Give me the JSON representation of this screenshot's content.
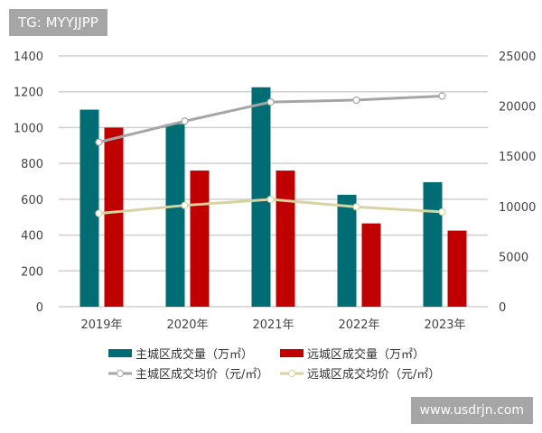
{
  "overlay": {
    "top_left": "TG: MYYJJPP",
    "bottom_right": "www.usdrjn.com"
  },
  "chart_data": {
    "type": "bar",
    "categories": [
      "2019年",
      "2020年",
      "2021年",
      "2022年",
      "2023年"
    ],
    "left_axis": {
      "ylim": [
        0,
        1400
      ],
      "ticks": [
        0,
        200,
        400,
        600,
        800,
        1000,
        1200,
        1400
      ]
    },
    "right_axis": {
      "ylim": [
        0,
        25000
      ],
      "ticks": [
        0,
        5000,
        10000,
        15000,
        20000,
        25000
      ]
    },
    "grid": true,
    "legend_position": "bottom",
    "series": [
      {
        "name": "主城区成交量（万㎡）",
        "type": "bar",
        "axis": "left",
        "color": "#006d75",
        "values": [
          1100,
          1020,
          1225,
          625,
          695
        ]
      },
      {
        "name": "远城区成交量（万㎡）",
        "type": "bar",
        "axis": "left",
        "color": "#c00000",
        "values": [
          1000,
          760,
          760,
          465,
          425
        ]
      },
      {
        "name": "主城区成交均价（元/㎡）",
        "type": "line",
        "axis": "right",
        "color": "#a6a6a6",
        "values": [
          16400,
          18500,
          20400,
          20600,
          21000
        ]
      },
      {
        "name": "远城区成交均价（元/㎡）",
        "type": "line",
        "axis": "right",
        "color": "#d9d3a0",
        "values": [
          9300,
          10100,
          10700,
          9950,
          9450
        ]
      }
    ]
  }
}
